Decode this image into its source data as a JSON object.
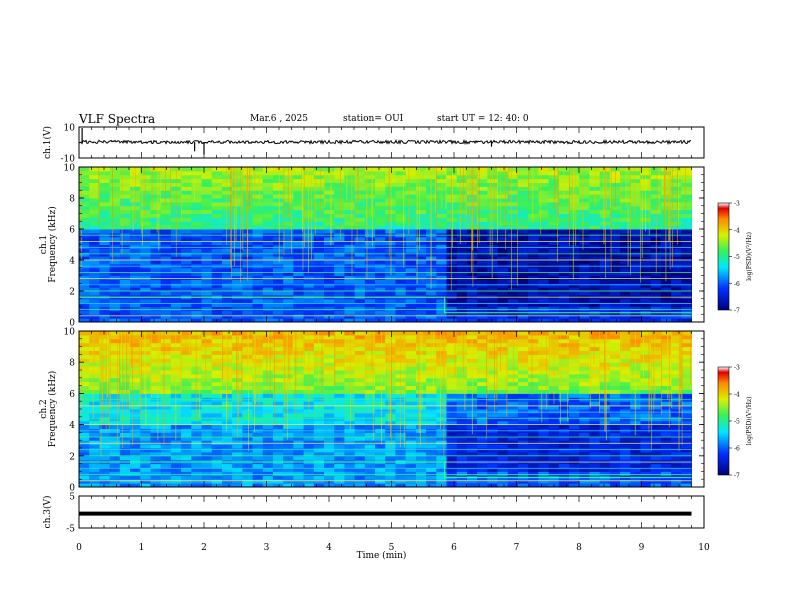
{
  "header": {
    "title": "VLF Spectra",
    "date": "Mar.6 , 2025",
    "station": "station= OUI",
    "start": "start UT = 12: 40: 0"
  },
  "chart_data": [
    {
      "type": "line",
      "ylabel": "ch.1(V)",
      "y_ticks": [
        "10",
        "-10"
      ],
      "ylim": [
        -10,
        10
      ],
      "xlim": [
        0,
        10
      ],
      "series": [
        {
          "values_description_note": "",
          "x": [
            0,
            0.05,
            0.1,
            1.8,
            1.85,
            2.0,
            2.05,
            6.6,
            9.8
          ],
          "y": [
            0,
            9,
            0,
            0,
            -6,
            -8,
            0,
            -3,
            0
          ]
        }
      ]
    },
    {
      "type": "heatmap",
      "ylabel": "ch.1\nFrequency (kHz)",
      "y_ticks": [
        "0",
        "2",
        "4",
        "6",
        "8",
        "10"
      ],
      "ylim": [
        0,
        10
      ],
      "xlim": [
        0,
        9.8
      ],
      "colorbar": {
        "label": "log(PSD)(V²/Hz)",
        "ticks": [
          "-3",
          "-4",
          "-5",
          "-6",
          "-7"
        ],
        "range": [
          -7,
          -3
        ]
      },
      "lines_khz": [
        0.4,
        0.8,
        1.2,
        1.6,
        2.0,
        2.4,
        2.8,
        3.2,
        3.6,
        4.0,
        4.4,
        4.8,
        5.2,
        5.6
      ],
      "step_time_min": 5.85
    },
    {
      "type": "heatmap",
      "ylabel": "ch.2\nFrequency (kHz)",
      "y_ticks": [
        "0",
        "2",
        "4",
        "6",
        "8",
        "10"
      ],
      "ylim": [
        0,
        10
      ],
      "xlim": [
        0,
        9.8
      ],
      "colorbar": {
        "label": "log(PSD)(V²/Hz)",
        "ticks": [
          "-3",
          "-4",
          "-5",
          "-6",
          "-7"
        ],
        "range": [
          -7,
          -3
        ]
      },
      "lines_khz": [
        0.4,
        0.8,
        1.2,
        1.6,
        2.0,
        2.4,
        2.8,
        3.2,
        3.6,
        4.0,
        4.4,
        4.8,
        5.2,
        5.6
      ],
      "step_time_min": 5.85
    },
    {
      "type": "line",
      "ylabel": "ch.3(V)",
      "y_ticks": [
        "5",
        "-5"
      ],
      "ylim": [
        -5,
        5
      ],
      "xlim": [
        0,
        10
      ],
      "series": [
        {
          "x": [
            0,
            9.8
          ],
          "y": [
            -0.5,
            -0.5
          ]
        }
      ]
    }
  ],
  "x_axis": {
    "label": "Time (min)",
    "ticks": [
      "0",
      "1",
      "2",
      "3",
      "4",
      "5",
      "6",
      "7",
      "8",
      "9",
      "10"
    ]
  }
}
